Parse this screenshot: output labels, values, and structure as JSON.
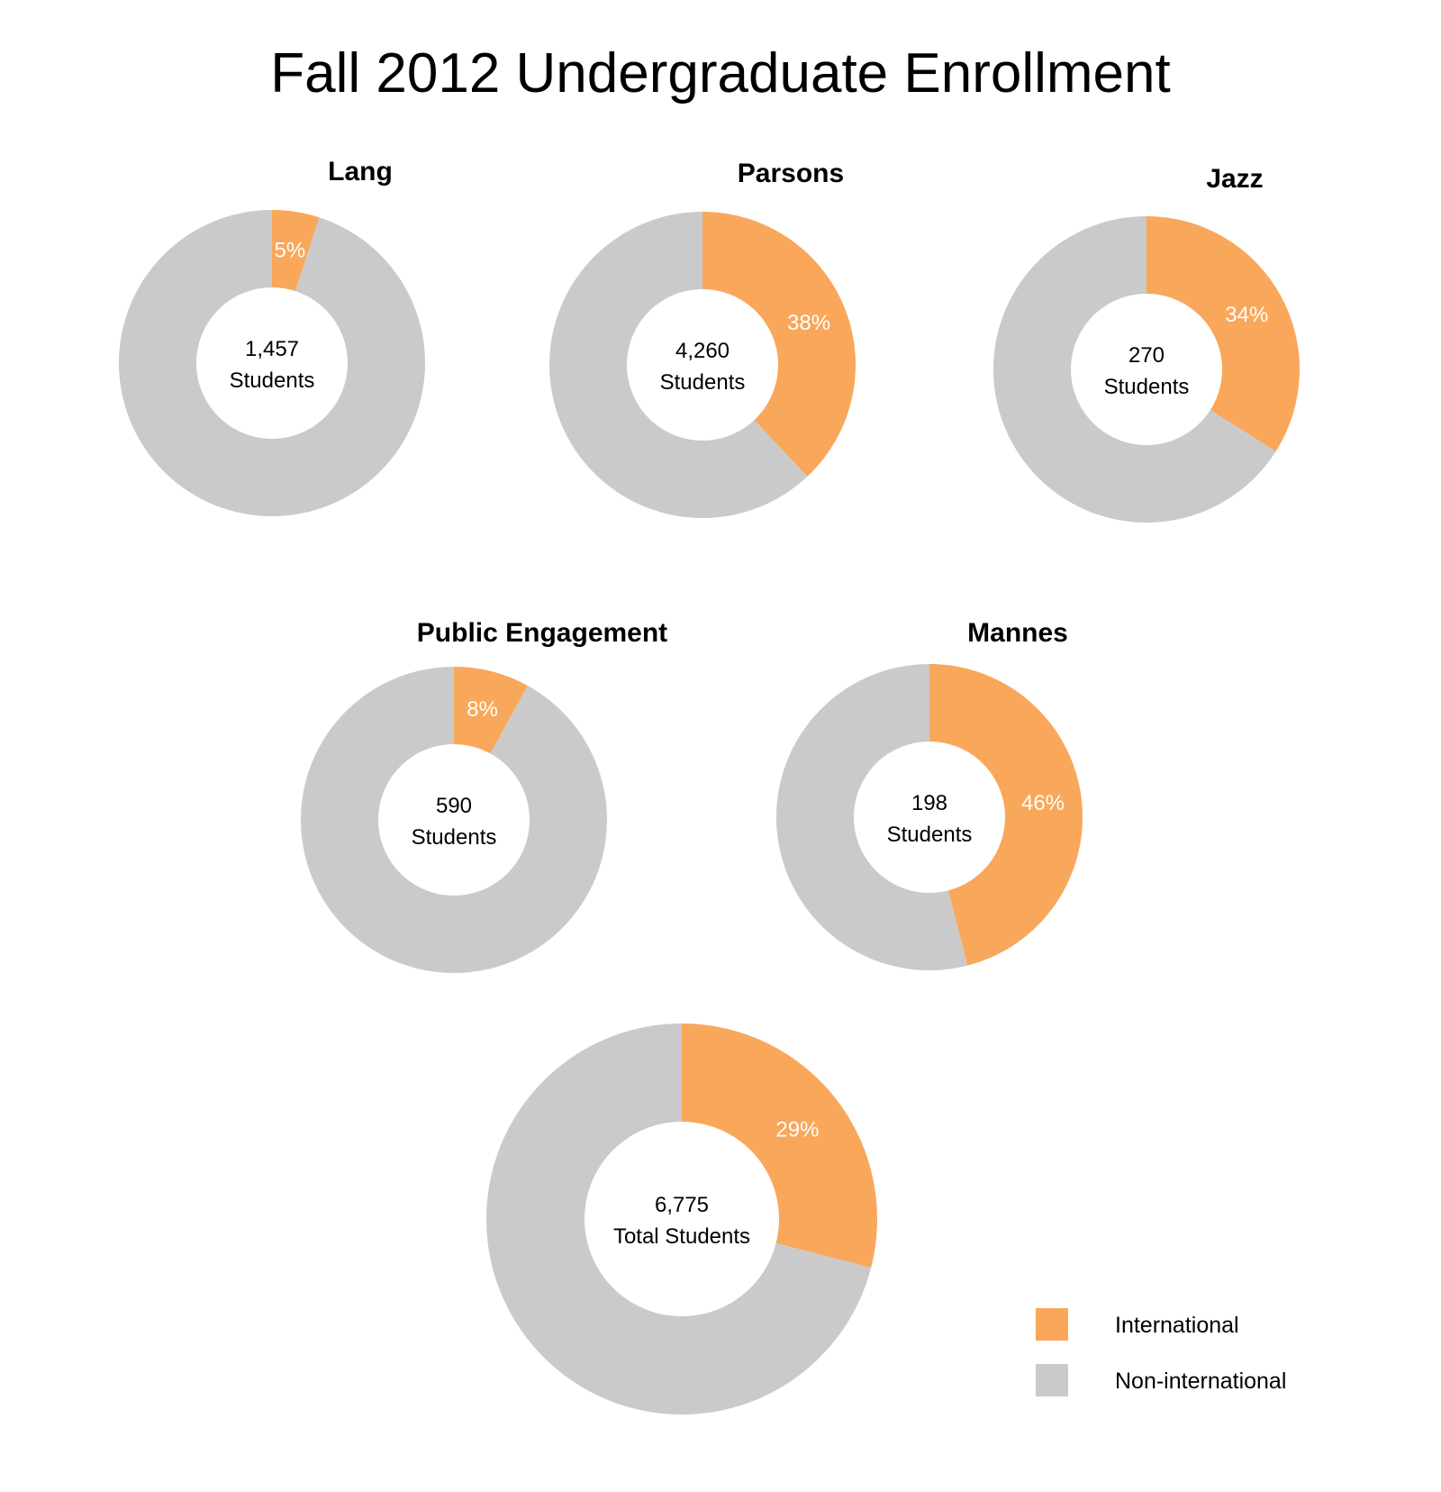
{
  "title": "Fall 2012 Undergraduate Enrollment",
  "colors": {
    "international": "#F9A75A",
    "non_international": "#CACACA"
  },
  "legend": {
    "placement": "bottom-right",
    "items": [
      {
        "label": "International",
        "color": "#F9A75A"
      },
      {
        "label": "Non-international",
        "color": "#CACACA"
      }
    ]
  },
  "chart_data": [
    {
      "type": "pie",
      "title": "Lang",
      "center_value": "1,457",
      "center_label": "Students",
      "categories": [
        "International",
        "Non-international"
      ],
      "values": [
        5,
        95
      ],
      "data_label": "5%"
    },
    {
      "type": "pie",
      "title": "Parsons",
      "center_value": "4,260",
      "center_label": "Students",
      "categories": [
        "International",
        "Non-international"
      ],
      "values": [
        38,
        62
      ],
      "data_label": "38%"
    },
    {
      "type": "pie",
      "title": "Jazz",
      "center_value": "270",
      "center_label": "Students",
      "categories": [
        "International",
        "Non-international"
      ],
      "values": [
        34,
        66
      ],
      "data_label": "34%"
    },
    {
      "type": "pie",
      "title": "Public Engagement",
      "center_value": "590",
      "center_label": "Students",
      "categories": [
        "International",
        "Non-international"
      ],
      "values": [
        8,
        92
      ],
      "data_label": "8%"
    },
    {
      "type": "pie",
      "title": "Mannes",
      "center_value": "198",
      "center_label": "Students",
      "categories": [
        "International",
        "Non-international"
      ],
      "values": [
        46,
        54
      ],
      "data_label": "46%"
    },
    {
      "type": "pie",
      "title": "",
      "center_value": "6,775",
      "center_label": "Total Students",
      "categories": [
        "International",
        "Non-international"
      ],
      "values": [
        29,
        71
      ],
      "data_label": "29%"
    }
  ]
}
